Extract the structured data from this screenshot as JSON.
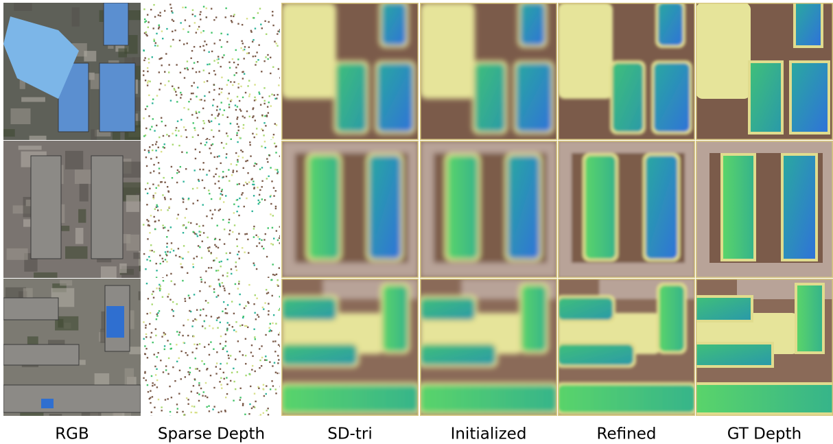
{
  "figure": {
    "columns": [
      "RGB",
      "Sparse Depth",
      "SD-tri",
      "Initialized",
      "Refined",
      "GT Depth"
    ]
  }
}
